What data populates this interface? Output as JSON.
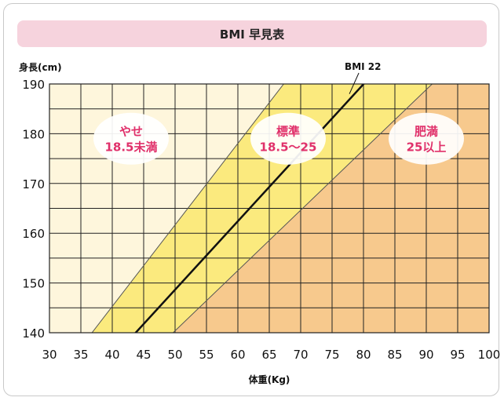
{
  "chart_data": {
    "type": "area",
    "title": "BMI 早見表",
    "xlabel": "体重(Kg)",
    "ylabel": "身長(cm)",
    "xlim": [
      30,
      100
    ],
    "ylim": [
      140,
      190
    ],
    "x_ticks": [
      30,
      35,
      40,
      45,
      50,
      55,
      60,
      65,
      70,
      75,
      80,
      85,
      90,
      95,
      100
    ],
    "y_ticks": [
      140,
      150,
      160,
      170,
      180,
      190
    ],
    "grid": true,
    "zones": [
      {
        "name": "やせ",
        "range": "18.5未満",
        "color": "#fef6dc",
        "bmi_max": 18.5
      },
      {
        "name": "標準",
        "range": "18.5〜25",
        "color": "#fbea7e",
        "bmi_min": 18.5,
        "bmi_max": 25
      },
      {
        "name": "肥満",
        "range": "25以上",
        "color": "#f7c98d",
        "bmi_min": 25
      }
    ],
    "series": [
      {
        "name": "BMI 22",
        "bmi": 22,
        "color": "#111111"
      }
    ]
  }
}
